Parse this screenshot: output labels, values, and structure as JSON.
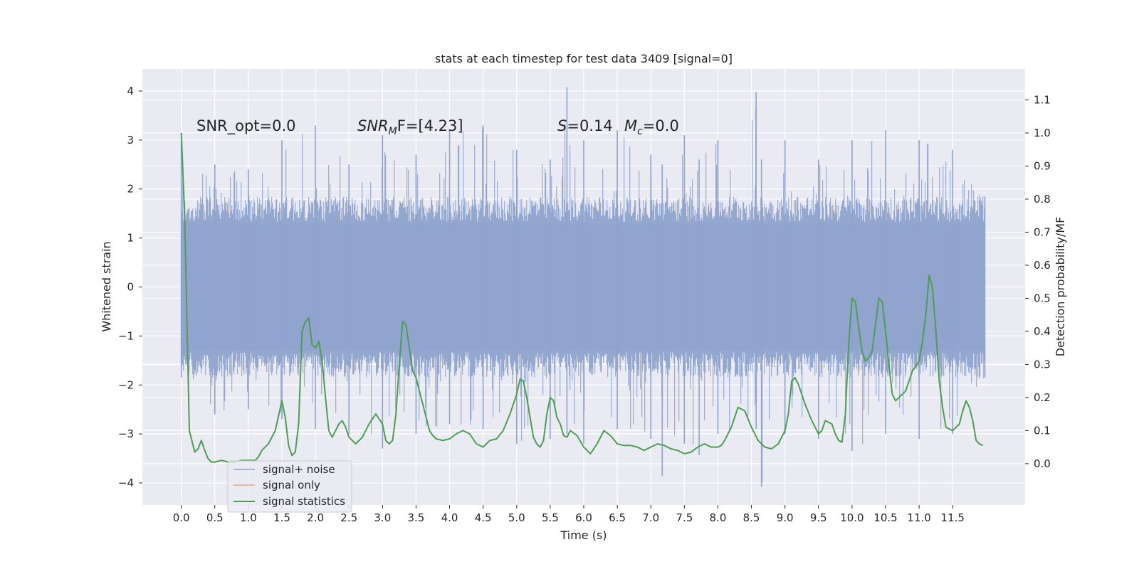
{
  "chart_data": {
    "type": "line",
    "title": "stats at each timestep for test data 3409 [signal=0]",
    "xlabel": "Time (s)",
    "ylabel_left": "Whitened strain",
    "ylabel_right": "Detection probability/MF",
    "xlim": [
      -0.58,
      12.58
    ],
    "ylim_left": [
      -4.45,
      4.45
    ],
    "ylim_right": [
      -0.125,
      1.1935
    ],
    "xticks": [
      "0.0",
      "0.5",
      "1.0",
      "1.5",
      "2.0",
      "2.5",
      "3.0",
      "3.5",
      "4.0",
      "4.5",
      "5.0",
      "5.5",
      "6.0",
      "6.5",
      "7.0",
      "7.5",
      "8.0",
      "8.5",
      "9.0",
      "9.5",
      "10.0",
      "10.5",
      "11.0",
      "11.5"
    ],
    "yticks_left": [
      "4",
      "3",
      "2",
      "1",
      "0",
      "−1",
      "−2",
      "−3",
      "−4"
    ],
    "yticks_right": [
      "1.1",
      "1.0",
      "0.9",
      "0.8",
      "0.7",
      "0.6",
      "0.5",
      "0.4",
      "0.3",
      "0.2",
      "0.1",
      "0.0"
    ],
    "grid": true,
    "legend_position": "lower-left",
    "annotations": {
      "snr_opt": "SNR_opt=0.0",
      "snr_mf_italic": "SNR",
      "snr_mf_sub": "M",
      "snr_mf_rest": "F=[4.23]",
      "s_italic": "S",
      "s_rest": "=0.14",
      "mc_italic": "M",
      "mc_sub": "c",
      "mc_rest": "=0.0"
    },
    "noise_envelope": {
      "x_start": 0.0,
      "x_end": 11.98,
      "typical_max": 1.9,
      "typical_min": -1.9,
      "peak_max": 4.08,
      "peak_min": -4.08
    },
    "series": [
      {
        "name": "signal+ noise",
        "color": "#8fa3cc",
        "x": [
          0.0,
          0.5,
          1.0,
          1.5,
          2.0,
          2.5,
          3.0,
          3.5,
          4.0,
          4.5,
          5.0,
          5.5,
          5.75,
          6.0,
          6.5,
          7.0,
          7.17,
          7.5,
          7.72,
          8.0,
          8.57,
          8.65,
          9.0,
          9.5,
          10.0,
          10.5,
          11.0,
          11.5,
          11.98
        ],
        "max": [
          2.95,
          2.5,
          2.4,
          3.0,
          3.3,
          2.5,
          3.1,
          2.7,
          3.2,
          3.3,
          2.8,
          2.6,
          4.08,
          3.0,
          3.2,
          2.7,
          2.5,
          3.1,
          2.6,
          3.0,
          3.98,
          2.6,
          3.0,
          2.6,
          3.0,
          3.2,
          3.0,
          2.8,
          1.85
        ],
        "min": [
          -1.85,
          -2.6,
          -2.5,
          -2.7,
          -2.9,
          -3.0,
          -3.3,
          -3.0,
          -2.8,
          -2.9,
          -3.2,
          -3.1,
          -3.0,
          -3.2,
          -2.9,
          -3.1,
          -3.86,
          -3.2,
          -3.43,
          -3.0,
          -2.9,
          -4.08,
          -3.0,
          -3.1,
          -3.35,
          -3.0,
          -3.1,
          -3.0,
          -1.85
        ]
      },
      {
        "name": "signal only",
        "color": "#e8a48a",
        "x": [],
        "y": []
      },
      {
        "name": "signal statistics",
        "color": "#4c9e52",
        "axis": "right",
        "x": [
          0.0,
          0.05,
          0.12,
          0.2,
          0.25,
          0.3,
          0.35,
          0.4,
          0.45,
          0.5,
          0.6,
          0.7,
          0.8,
          0.9,
          1.0,
          1.1,
          1.15,
          1.2,
          1.3,
          1.4,
          1.5,
          1.55,
          1.6,
          1.65,
          1.7,
          1.75,
          1.8,
          1.85,
          1.9,
          1.95,
          2.0,
          2.05,
          2.1,
          2.15,
          2.2,
          2.25,
          2.3,
          2.35,
          2.4,
          2.45,
          2.5,
          2.55,
          2.6,
          2.7,
          2.8,
          2.9,
          3.0,
          3.05,
          3.1,
          3.15,
          3.2,
          3.25,
          3.3,
          3.35,
          3.4,
          3.45,
          3.5,
          3.55,
          3.6,
          3.65,
          3.7,
          3.75,
          3.8,
          3.9,
          4.0,
          4.1,
          4.2,
          4.3,
          4.4,
          4.5,
          4.6,
          4.7,
          4.8,
          4.9,
          5.0,
          5.05,
          5.1,
          5.15,
          5.2,
          5.25,
          5.3,
          5.35,
          5.4,
          5.45,
          5.5,
          5.55,
          5.6,
          5.65,
          5.7,
          5.75,
          5.8,
          5.9,
          6.0,
          6.1,
          6.2,
          6.3,
          6.4,
          6.5,
          6.6,
          6.7,
          6.8,
          6.9,
          7.0,
          7.1,
          7.2,
          7.3,
          7.4,
          7.5,
          7.6,
          7.7,
          7.8,
          7.9,
          8.0,
          8.05,
          8.1,
          8.2,
          8.3,
          8.4,
          8.5,
          8.6,
          8.7,
          8.8,
          8.9,
          9.0,
          9.05,
          9.1,
          9.15,
          9.2,
          9.3,
          9.4,
          9.5,
          9.55,
          9.6,
          9.7,
          9.75,
          9.8,
          9.85,
          9.9,
          9.95,
          10.0,
          10.05,
          10.1,
          10.15,
          10.2,
          10.25,
          10.3,
          10.35,
          10.4,
          10.45,
          10.5,
          10.55,
          10.6,
          10.65,
          10.7,
          10.8,
          10.9,
          11.0,
          11.05,
          11.1,
          11.15,
          11.2,
          11.25,
          11.3,
          11.35,
          11.4,
          11.5,
          11.6,
          11.65,
          11.7,
          11.75,
          11.8,
          11.85,
          11.9,
          11.95
        ],
        "y": [
          1.0,
          0.75,
          0.1,
          0.035,
          0.045,
          0.07,
          0.04,
          0.015,
          0.005,
          0.005,
          0.01,
          0.005,
          0.005,
          0.01,
          0.01,
          0.01,
          0.02,
          0.04,
          0.06,
          0.1,
          0.19,
          0.14,
          0.055,
          0.025,
          0.035,
          0.12,
          0.4,
          0.43,
          0.44,
          0.36,
          0.35,
          0.37,
          0.31,
          0.2,
          0.1,
          0.08,
          0.1,
          0.12,
          0.13,
          0.11,
          0.08,
          0.07,
          0.06,
          0.08,
          0.12,
          0.15,
          0.12,
          0.07,
          0.06,
          0.07,
          0.15,
          0.3,
          0.43,
          0.42,
          0.35,
          0.28,
          0.26,
          0.22,
          0.18,
          0.14,
          0.1,
          0.085,
          0.075,
          0.07,
          0.075,
          0.09,
          0.1,
          0.09,
          0.06,
          0.05,
          0.07,
          0.075,
          0.1,
          0.15,
          0.21,
          0.255,
          0.25,
          0.2,
          0.14,
          0.08,
          0.06,
          0.05,
          0.07,
          0.15,
          0.2,
          0.19,
          0.14,
          0.12,
          0.085,
          0.08,
          0.1,
          0.085,
          0.05,
          0.03,
          0.06,
          0.1,
          0.085,
          0.06,
          0.055,
          0.055,
          0.05,
          0.04,
          0.05,
          0.06,
          0.055,
          0.045,
          0.04,
          0.03,
          0.035,
          0.05,
          0.06,
          0.05,
          0.05,
          0.055,
          0.07,
          0.11,
          0.17,
          0.16,
          0.11,
          0.07,
          0.05,
          0.045,
          0.06,
          0.1,
          0.15,
          0.25,
          0.26,
          0.24,
          0.18,
          0.13,
          0.09,
          0.1,
          0.13,
          0.12,
          0.09,
          0.07,
          0.065,
          0.15,
          0.36,
          0.5,
          0.49,
          0.41,
          0.34,
          0.31,
          0.32,
          0.34,
          0.42,
          0.5,
          0.49,
          0.4,
          0.3,
          0.21,
          0.19,
          0.2,
          0.22,
          0.28,
          0.31,
          0.37,
          0.45,
          0.57,
          0.53,
          0.4,
          0.25,
          0.17,
          0.11,
          0.1,
          0.12,
          0.16,
          0.19,
          0.17,
          0.13,
          0.07,
          0.06,
          0.055
        ]
      }
    ]
  }
}
